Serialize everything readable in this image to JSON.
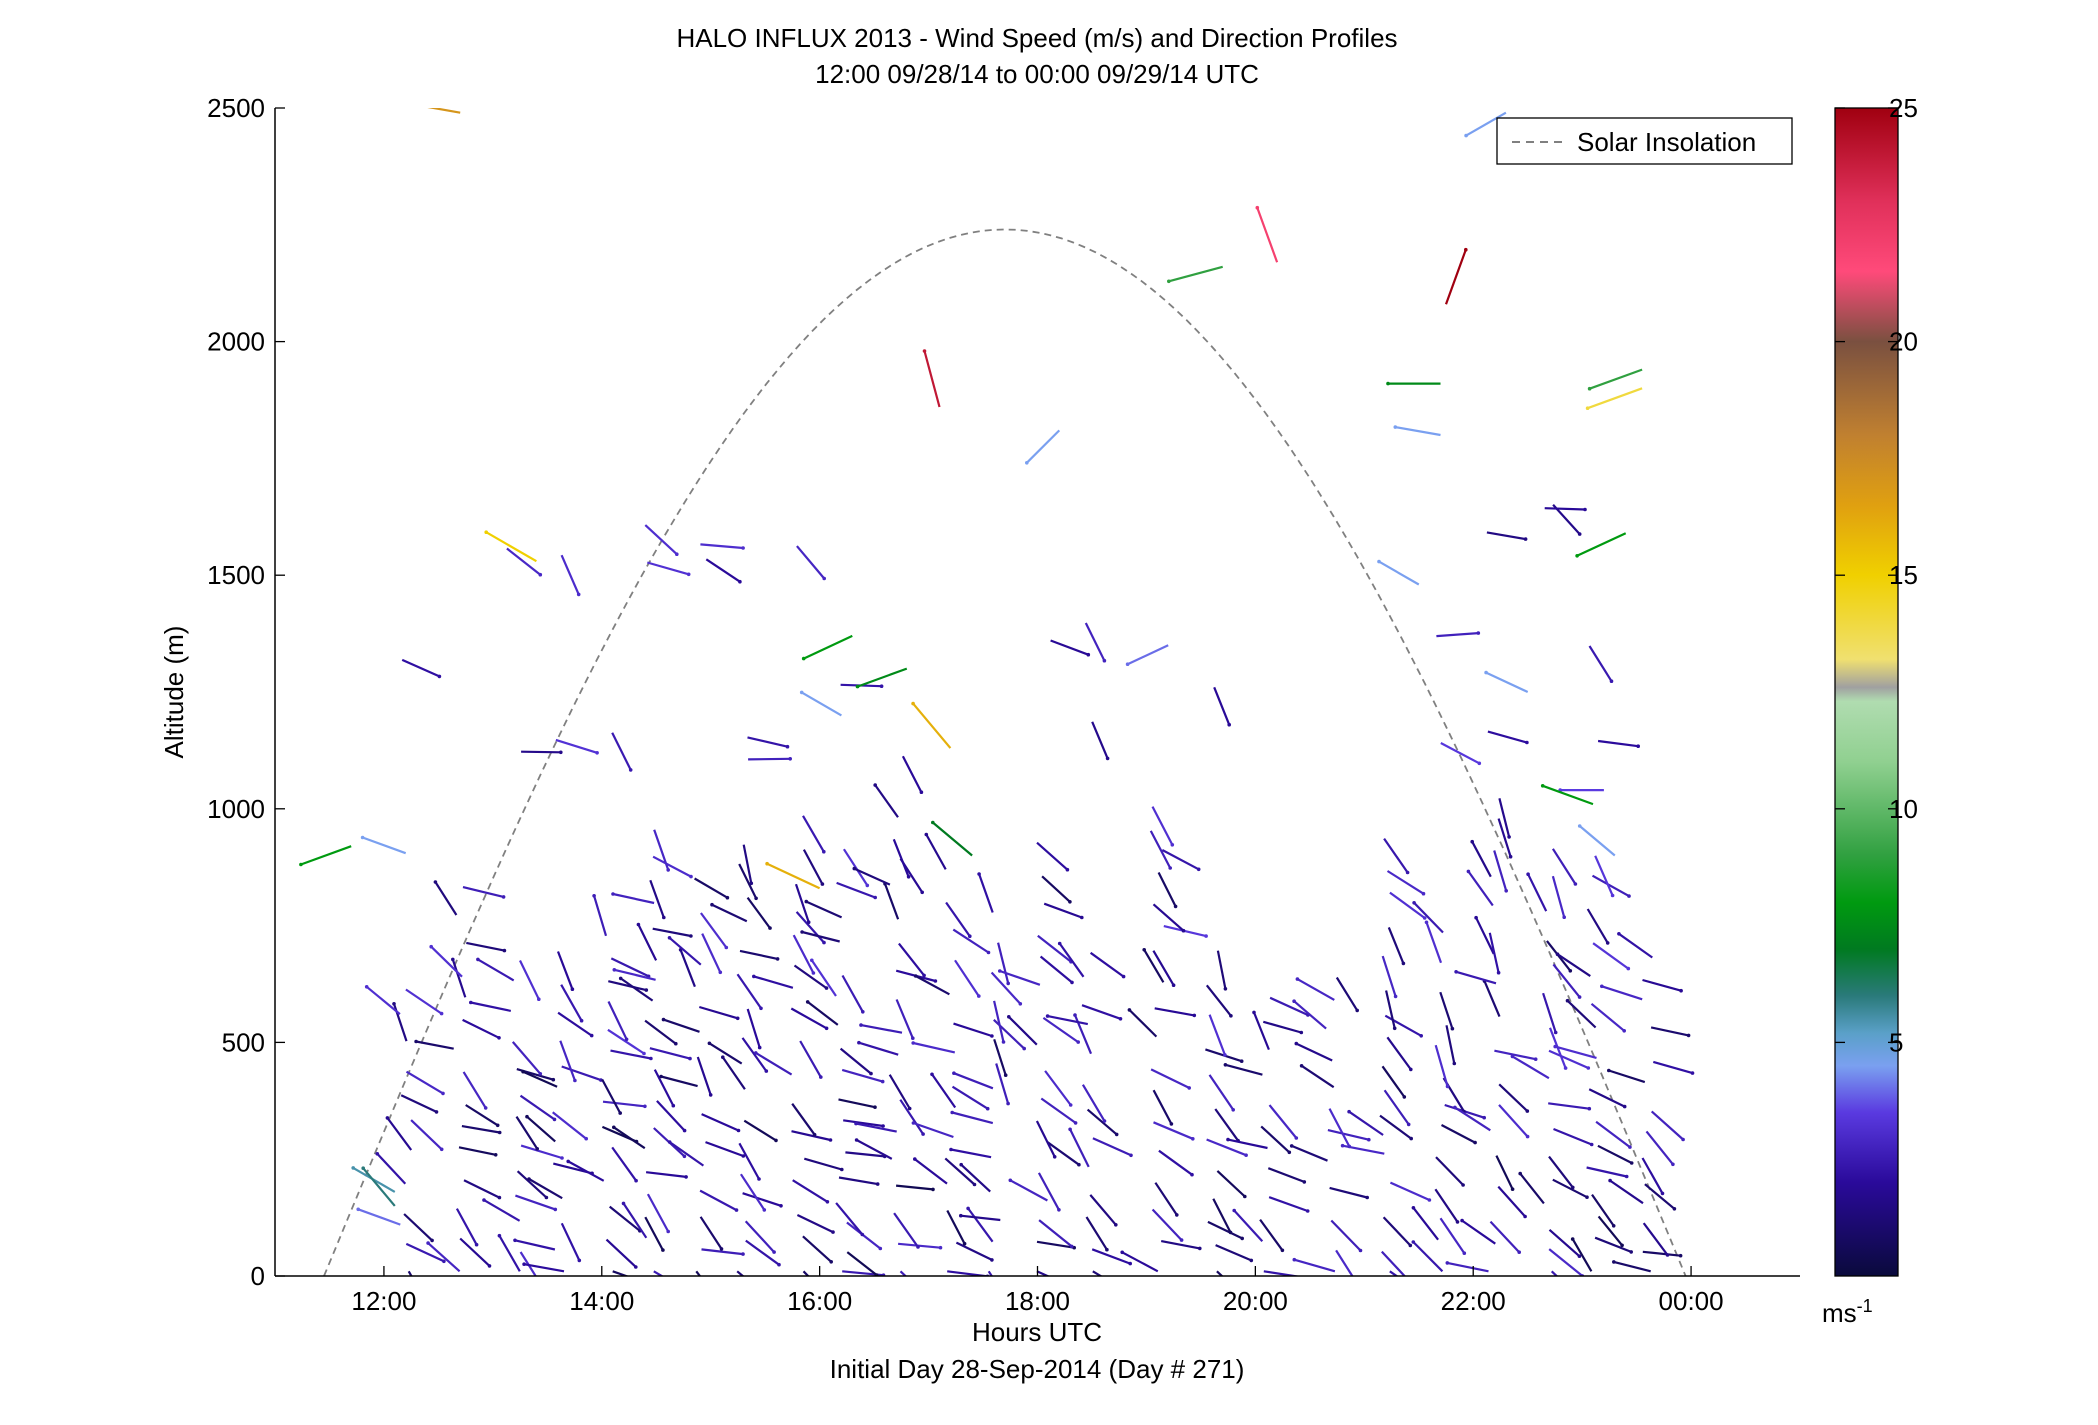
{
  "chart_data": {
    "type": "wind-barb-profile",
    "title": "HALO INFLUX 2013 - Wind Speed (m/s) and Direction Profiles",
    "subtitle": "12:00 09/28/14 to 00:00 09/29/14  UTC",
    "xlabel": "Hours UTC",
    "xlabel2": "Initial Day 28-Sep-2014 (Day # 271)",
    "ylabel": "Altitude (m)",
    "x_ticks": [
      "12:00",
      "14:00",
      "16:00",
      "18:00",
      "20:00",
      "22:00",
      "00:00"
    ],
    "x_tick_hours": [
      12,
      14,
      16,
      18,
      20,
      22,
      24
    ],
    "xlim_hours": [
      11,
      25
    ],
    "y_ticks": [
      "0",
      "500",
      "1000",
      "1500",
      "2000",
      "2500"
    ],
    "y_tick_values": [
      0,
      500,
      1000,
      1500,
      2000,
      2500
    ],
    "ylim": [
      0,
      2500
    ],
    "legend": {
      "entries": [
        "Solar Insolation"
      ],
      "placement": "top-right",
      "line_style": "dashed",
      "line_color": "#808080"
    },
    "colorbar": {
      "ticks": [
        "5",
        "10",
        "15",
        "20",
        "25"
      ],
      "tick_values": [
        5,
        10,
        15,
        20,
        25
      ],
      "range": [
        0,
        25
      ],
      "unit_label": "ms",
      "unit_exponent": "-1",
      "stops": [
        {
          "v": 0,
          "c": "#0a0a3c"
        },
        {
          "v": 2,
          "c": "#2a0a9a"
        },
        {
          "v": 3.5,
          "c": "#5a3ae0"
        },
        {
          "v": 4.5,
          "c": "#7aa0f0"
        },
        {
          "v": 5.2,
          "c": "#5aa0c8"
        },
        {
          "v": 6,
          "c": "#2a7a7a"
        },
        {
          "v": 7,
          "c": "#007a20"
        },
        {
          "v": 8,
          "c": "#009a10"
        },
        {
          "v": 9,
          "c": "#30a040"
        },
        {
          "v": 11,
          "c": "#90d090"
        },
        {
          "v": 12.3,
          "c": "#b0dcb0"
        },
        {
          "v": 12.6,
          "c": "#a0a0a0"
        },
        {
          "v": 13.2,
          "c": "#f0e070"
        },
        {
          "v": 15,
          "c": "#f0d000"
        },
        {
          "v": 16.5,
          "c": "#e0a010"
        },
        {
          "v": 18,
          "c": "#c08030"
        },
        {
          "v": 20,
          "c": "#7a5040"
        },
        {
          "v": 21.5,
          "c": "#ff4a7a"
        },
        {
          "v": 23,
          "c": "#e0305a"
        },
        {
          "v": 25,
          "c": "#a00010"
        }
      ]
    },
    "solar_insolation": {
      "start_hour": 11.45,
      "end_hour": 23.95,
      "peak_altitude": 2240
    },
    "columns_hours": [
      12.2,
      12.7,
      13.2,
      13.6,
      14.05,
      14.45,
      14.9,
      15.3,
      15.8,
      16.2,
      16.7,
      17.2,
      17.6,
      18.05,
      18.45,
      19.1,
      19.6,
      20.1,
      20.7,
      21.2,
      21.7,
      22.2,
      22.7,
      23.1,
      23.6
    ],
    "wind": [
      {
        "t": 11.7,
        "z": 920,
        "d": 250,
        "s": 8
      },
      {
        "t": 12.2,
        "z": 905,
        "d": 290,
        "s": 4.5
      },
      {
        "t": 12.7,
        "z": 2490,
        "d": 280,
        "s": 17
      },
      {
        "t": 13.4,
        "z": 1530,
        "d": 300,
        "s": 15
      },
      {
        "t": 16.0,
        "z": 830,
        "d": 295,
        "s": 16
      },
      {
        "t": 17.2,
        "z": 1130,
        "d": 320,
        "s": 16
      },
      {
        "t": 16.3,
        "z": 1370,
        "d": 245,
        "s": 8
      },
      {
        "t": 16.8,
        "z": 1300,
        "d": 250,
        "s": 7.5
      },
      {
        "t": 17.4,
        "z": 900,
        "d": 310,
        "s": 7
      },
      {
        "t": 19.7,
        "z": 2160,
        "d": 255,
        "s": 9
      },
      {
        "t": 20.2,
        "z": 2170,
        "d": 340,
        "s": 22
      },
      {
        "t": 21.75,
        "z": 2080,
        "d": 20,
        "s": 25
      },
      {
        "t": 21.7,
        "z": 1910,
        "d": 270,
        "s": 7.5
      },
      {
        "t": 21.7,
        "z": 1800,
        "d": 280,
        "s": 4.5
      },
      {
        "t": 23.55,
        "z": 1940,
        "d": 250,
        "s": 9
      },
      {
        "t": 23.55,
        "z": 1900,
        "d": 250,
        "s": 14
      },
      {
        "t": 23.4,
        "z": 1590,
        "d": 245,
        "s": 8
      },
      {
        "t": 23.2,
        "z": 1040,
        "d": 270,
        "s": 3.5
      },
      {
        "t": 23.1,
        "z": 1010,
        "d": 290,
        "s": 8
      },
      {
        "t": 22.3,
        "z": 2490,
        "d": 240,
        "s": 4.5
      },
      {
        "t": 17.1,
        "z": 1860,
        "d": 345,
        "s": 24
      },
      {
        "t": 21.5,
        "z": 1480,
        "d": 300,
        "s": 4.5
      },
      {
        "t": 22.5,
        "z": 1250,
        "d": 295,
        "s": 4.5
      },
      {
        "t": 16.2,
        "z": 1200,
        "d": 300,
        "s": 4.5
      },
      {
        "t": 18.2,
        "z": 1810,
        "d": 225,
        "s": 4.5
      },
      {
        "t": 19.2,
        "z": 1350,
        "d": 245,
        "s": 4
      },
      {
        "t": 23.3,
        "z": 900,
        "d": 310,
        "s": 4.5
      },
      {
        "t": 12.1,
        "z": 180,
        "d": 300,
        "s": 5.5
      },
      {
        "t": 12.1,
        "z": 150,
        "d": 320,
        "s": 6
      },
      {
        "t": 12.15,
        "z": 110,
        "d": 290,
        "s": 4
      }
    ]
  }
}
